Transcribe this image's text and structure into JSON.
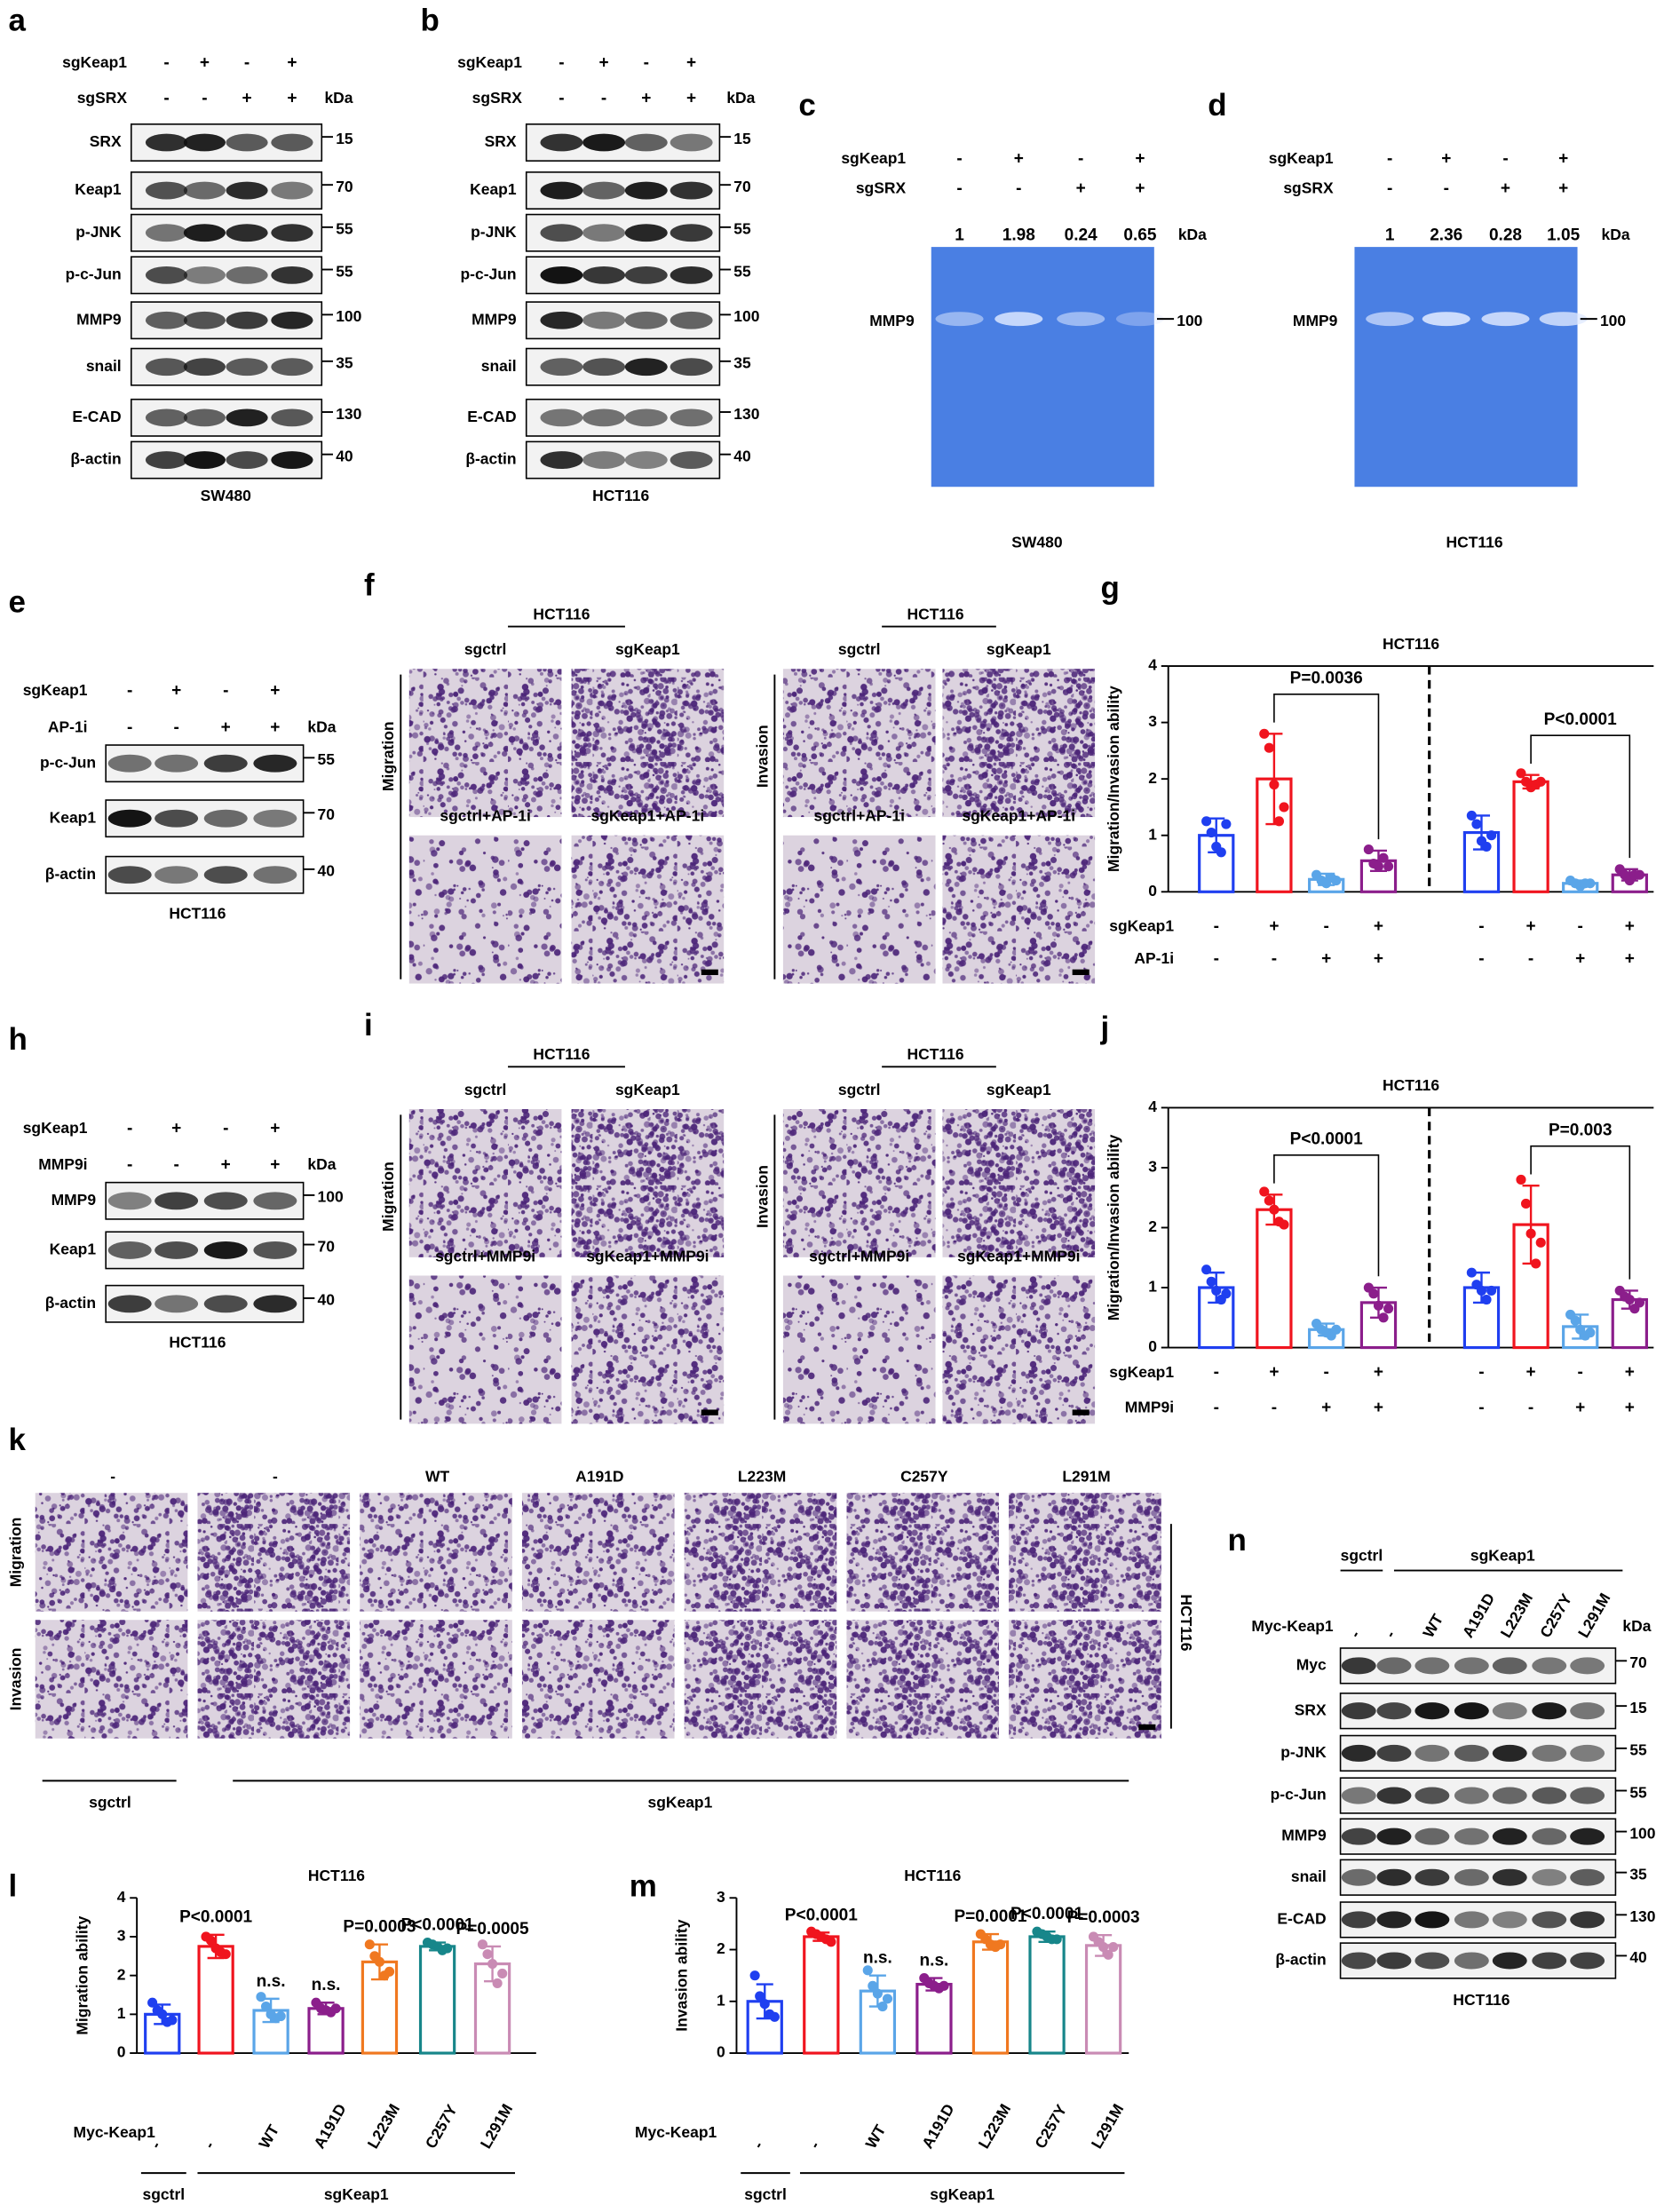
{
  "panels": {
    "a": {
      "letter": "a",
      "treatments": [
        {
          "name": "sgKeap1",
          "signs": [
            "-",
            "+",
            "-",
            "+"
          ]
        },
        {
          "name": "sgSRX",
          "signs": [
            "-",
            "-",
            "+",
            "+"
          ]
        }
      ],
      "unit": "kDa",
      "blots": [
        {
          "protein": "SRX",
          "kda": 15
        },
        {
          "protein": "Keap1",
          "kda": 70
        },
        {
          "protein": "p-JNK",
          "kda": 55
        },
        {
          "protein": "p-c-Jun",
          "kda": 55
        },
        {
          "protein": "MMP9",
          "kda": 100
        },
        {
          "protein": "snail",
          "kda": 35
        },
        {
          "protein": "E-CAD",
          "kda": 130
        },
        {
          "protein": "β-actin",
          "kda": 40
        }
      ],
      "cell_line": "SW480"
    },
    "b": {
      "letter": "b",
      "treatments": [
        {
          "name": "sgKeap1",
          "signs": [
            "-",
            "+",
            "-",
            "+"
          ]
        },
        {
          "name": "sgSRX",
          "signs": [
            "-",
            "-",
            "+",
            "+"
          ]
        }
      ],
      "unit": "kDa",
      "blots": [
        {
          "protein": "SRX",
          "kda": 15
        },
        {
          "protein": "Keap1",
          "kda": 70
        },
        {
          "protein": "p-JNK",
          "kda": 55
        },
        {
          "protein": "p-c-Jun",
          "kda": 55
        },
        {
          "protein": "MMP9",
          "kda": 100
        },
        {
          "protein": "snail",
          "kda": 35
        },
        {
          "protein": "E-CAD",
          "kda": 130
        },
        {
          "protein": "β-actin",
          "kda": 40
        }
      ],
      "cell_line": "HCT116"
    },
    "c": {
      "letter": "c",
      "treatments": [
        {
          "name": "sgKeap1",
          "signs": [
            "-",
            "+",
            "-",
            "+"
          ]
        },
        {
          "name": "sgSRX",
          "signs": [
            "-",
            "-",
            "+",
            "+"
          ]
        }
      ],
      "lane_values": [
        1,
        1.98,
        0.24,
        0.65
      ],
      "unit": "kDa",
      "protein": "MMP9",
      "kda": 100,
      "cell_line": "SW480"
    },
    "d": {
      "letter": "d",
      "treatments": [
        {
          "name": "sgKeap1",
          "signs": [
            "-",
            "+",
            "-",
            "+"
          ]
        },
        {
          "name": "sgSRX",
          "signs": [
            "-",
            "-",
            "+",
            "+"
          ]
        }
      ],
      "lane_values": [
        1,
        2.36,
        0.28,
        1.05
      ],
      "unit": "kDa",
      "protein": "MMP9",
      "kda": 100,
      "cell_line": "HCT116"
    },
    "e": {
      "letter": "e",
      "treatments": [
        {
          "name": "sgKeap1",
          "signs": [
            "-",
            "+",
            "-",
            "+"
          ]
        },
        {
          "name": "AP-1i",
          "signs": [
            "-",
            "-",
            "+",
            "+"
          ]
        }
      ],
      "unit": "kDa",
      "blots": [
        {
          "protein": "p-c-Jun",
          "kda": 55
        },
        {
          "protein": "Keap1",
          "kda": 70
        },
        {
          "protein": "β-actin",
          "kda": 40
        }
      ],
      "cell_line": "HCT116"
    },
    "f": {
      "letter": "f",
      "groups": [
        {
          "header": "HCT116",
          "row_label": "Migration",
          "images": [
            "sgctrl",
            "sgKeap1",
            "sgctrl+AP-1i",
            "sgKeap1+AP-1i"
          ]
        },
        {
          "header": "HCT116",
          "row_label": "Invasion",
          "images": [
            "sgctrl",
            "sgKeap1",
            "sgctrl+AP-1i",
            "sgKeap1+AP-1i"
          ]
        }
      ]
    },
    "h": {
      "letter": "h",
      "treatments": [
        {
          "name": "sgKeap1",
          "signs": [
            "-",
            "+",
            "-",
            "+"
          ]
        },
        {
          "name": "MMP9i",
          "signs": [
            "-",
            "-",
            "+",
            "+"
          ]
        }
      ],
      "unit": "kDa",
      "blots": [
        {
          "protein": "MMP9",
          "kda": 100
        },
        {
          "protein": "Keap1",
          "kda": 70
        },
        {
          "protein": "β-actin",
          "kda": 40
        }
      ],
      "cell_line": "HCT116"
    },
    "i": {
      "letter": "i",
      "groups": [
        {
          "header": "HCT116",
          "row_label": "Migration",
          "images": [
            "sgctrl",
            "sgKeap1",
            "sgctrl+MMP9i",
            "sgKeap1+MMP9i"
          ]
        },
        {
          "header": "HCT116",
          "row_label": "Invasion",
          "images": [
            "sgctrl",
            "sgKeap1",
            "sgctrl+MMP9i",
            "sgKeap1+MMP9i"
          ]
        }
      ]
    },
    "k": {
      "letter": "k",
      "columns": [
        "-",
        "-",
        "WT",
        "A191D",
        "L223M",
        "C257Y",
        "L291M"
      ],
      "rows": [
        "Migration",
        "Invasion"
      ],
      "cell_line": "HCT116",
      "groups": [
        "sgctrl",
        "sgKeap1"
      ]
    },
    "n": {
      "letter": "n",
      "groups": [
        "sgctrl",
        "sgKeap1"
      ],
      "treatment": "Myc-Keap1",
      "lanes": [
        "-",
        "-",
        "WT",
        "A191D",
        "L223M",
        "C257Y",
        "L291M"
      ],
      "unit": "kDa",
      "blots": [
        {
          "protein": "Myc",
          "kda": 70
        },
        {
          "protein": "SRX",
          "kda": 15
        },
        {
          "protein": "p-JNK",
          "kda": 55
        },
        {
          "protein": "p-c-Jun",
          "kda": 55
        },
        {
          "protein": "MMP9",
          "kda": 100
        },
        {
          "protein": "snail",
          "kda": 35
        },
        {
          "protein": "E-CAD",
          "kda": 130
        },
        {
          "protein": "β-actin",
          "kda": 40
        }
      ],
      "cell_line": "HCT116"
    }
  },
  "chart_data": [
    {
      "type": "bar",
      "letter": "g",
      "title": "HCT116",
      "y_label": "Migration/Invasion ability",
      "ylim": [
        0,
        4
      ],
      "yticks": [
        0,
        1,
        2,
        3,
        4
      ],
      "conditions": [
        {
          "name": "sgKeap1",
          "signs": [
            "-",
            "+",
            "-",
            "+",
            "-",
            "+",
            "-",
            "+"
          ]
        },
        {
          "name": "AP-1i",
          "signs": [
            "-",
            "-",
            "+",
            "+",
            "-",
            "-",
            "+",
            "+"
          ]
        }
      ],
      "values": [
        1.0,
        2.0,
        0.22,
        0.55,
        1.05,
        1.95,
        0.15,
        0.3
      ],
      "errors": [
        0.3,
        0.8,
        0.1,
        0.18,
        0.3,
        0.12,
        0.05,
        0.1
      ],
      "points": [
        [
          1.25,
          1.05,
          0.8,
          0.7,
          1.2
        ],
        [
          2.8,
          2.55,
          1.9,
          1.25,
          1.5
        ],
        [
          0.3,
          0.2,
          0.15,
          0.25,
          0.2
        ],
        [
          0.75,
          0.5,
          0.45,
          0.6,
          0.45
        ],
        [
          1.35,
          1.2,
          0.9,
          0.8,
          1.0
        ],
        [
          2.1,
          1.95,
          1.85,
          1.9,
          1.95
        ],
        [
          0.2,
          0.15,
          0.1,
          0.15,
          0.15
        ],
        [
          0.4,
          0.3,
          0.2,
          0.3,
          0.3
        ]
      ],
      "colors": [
        "#1f3ff0",
        "#f0141e",
        "#5aa5e8",
        "#8b1e8b",
        "#1f3ff0",
        "#f0141e",
        "#5aa5e8",
        "#8b1e8b"
      ],
      "annotations": [
        "P=0.0036",
        "P<0.0001"
      ]
    },
    {
      "type": "bar",
      "letter": "j",
      "title": "HCT116",
      "y_label": "Migration/Invasion ability",
      "ylim": [
        0,
        4
      ],
      "yticks": [
        0,
        1,
        2,
        3,
        4
      ],
      "conditions": [
        {
          "name": "sgKeap1",
          "signs": [
            "-",
            "+",
            "-",
            "+",
            "-",
            "+",
            "-",
            "+"
          ]
        },
        {
          "name": "MMP9i",
          "signs": [
            "-",
            "-",
            "+",
            "+",
            "-",
            "-",
            "+",
            "+"
          ]
        }
      ],
      "values": [
        1.0,
        2.3,
        0.3,
        0.75,
        1.0,
        2.05,
        0.35,
        0.8
      ],
      "errors": [
        0.25,
        0.25,
        0.1,
        0.25,
        0.25,
        0.65,
        0.2,
        0.15
      ],
      "points": [
        [
          1.3,
          1.1,
          0.95,
          0.8,
          0.9
        ],
        [
          2.6,
          2.45,
          2.3,
          2.1,
          2.05
        ],
        [
          0.4,
          0.3,
          0.25,
          0.2,
          0.3
        ],
        [
          1.0,
          0.9,
          0.7,
          0.5,
          0.65
        ],
        [
          1.25,
          1.05,
          0.95,
          0.8,
          0.95
        ],
        [
          2.8,
          2.4,
          1.9,
          1.4,
          1.75
        ],
        [
          0.55,
          0.45,
          0.3,
          0.2,
          0.25
        ],
        [
          0.95,
          0.85,
          0.8,
          0.65,
          0.75
        ]
      ],
      "colors": [
        "#1f3ff0",
        "#f0141e",
        "#5aa5e8",
        "#8b1e8b",
        "#1f3ff0",
        "#f0141e",
        "#5aa5e8",
        "#8b1e8b"
      ],
      "annotations": [
        "P<0.0001",
        "P=0.003"
      ]
    },
    {
      "type": "bar",
      "letter": "l",
      "title": "HCT116",
      "y_label": "Migration ability",
      "ylim": [
        0,
        4
      ],
      "yticks": [
        0,
        1,
        2,
        3,
        4
      ],
      "condition": "Myc-Keap1",
      "categories": [
        "-",
        "-",
        "WT",
        "A191D",
        "L223M",
        "C257Y",
        "L291M"
      ],
      "groups": [
        "sgctrl",
        "sgKeap1"
      ],
      "values": [
        1.0,
        2.75,
        1.1,
        1.15,
        2.35,
        2.75,
        2.3
      ],
      "errors": [
        0.25,
        0.3,
        0.3,
        0.15,
        0.45,
        0.1,
        0.45
      ],
      "points": [
        [
          1.3,
          1.1,
          1.0,
          0.8,
          0.85
        ],
        [
          3.0,
          2.9,
          2.7,
          2.6,
          2.55
        ],
        [
          1.45,
          1.2,
          1.0,
          0.9,
          0.95
        ],
        [
          1.3,
          1.15,
          1.1,
          1.05,
          1.15
        ],
        [
          2.8,
          2.5,
          2.35,
          2.0,
          2.1
        ],
        [
          2.85,
          2.8,
          2.75,
          2.65,
          2.7
        ],
        [
          2.8,
          2.55,
          2.3,
          1.8,
          2.05
        ]
      ],
      "colors": [
        "#1f3ff0",
        "#f0141e",
        "#5aa5e8",
        "#8b1e8b",
        "#f07820",
        "#17868a",
        "#c98bb4"
      ],
      "annotations": [
        "P<0.0001",
        "n.s.",
        "n.s.",
        "P=0.0003",
        "P<0.0001",
        "P=0.0005"
      ]
    },
    {
      "type": "bar",
      "letter": "m",
      "title": "HCT116",
      "y_label": "Invasion ability",
      "ylim": [
        0,
        3
      ],
      "yticks": [
        0,
        1,
        2,
        3
      ],
      "condition": "Myc-Keap1",
      "categories": [
        "-",
        "-",
        "WT",
        "A191D",
        "L223M",
        "C257Y",
        "L291M"
      ],
      "groups": [
        "sgctrl",
        "sgKeap1"
      ],
      "values": [
        1.0,
        2.25,
        1.2,
        1.33,
        2.15,
        2.25,
        2.08
      ],
      "errors": [
        0.33,
        0.08,
        0.3,
        0.12,
        0.15,
        0.1,
        0.2
      ],
      "points": [
        [
          1.5,
          1.1,
          0.95,
          0.75,
          0.7
        ],
        [
          2.35,
          2.3,
          2.25,
          2.2,
          2.15
        ],
        [
          1.6,
          1.3,
          1.15,
          0.9,
          1.05
        ],
        [
          1.45,
          1.35,
          1.3,
          1.25,
          1.3
        ],
        [
          2.3,
          2.2,
          2.1,
          2.05,
          2.1
        ],
        [
          2.35,
          2.3,
          2.25,
          2.2,
          2.2
        ],
        [
          2.25,
          2.15,
          2.05,
          1.9,
          2.05
        ]
      ],
      "colors": [
        "#1f3ff0",
        "#f0141e",
        "#5aa5e8",
        "#8b1e8b",
        "#f07820",
        "#17868a",
        "#c98bb4"
      ],
      "annotations": [
        "P<0.0001",
        "n.s.",
        "n.s.",
        "P=0.0001",
        "P<0.0001",
        "P=0.0003"
      ]
    }
  ]
}
